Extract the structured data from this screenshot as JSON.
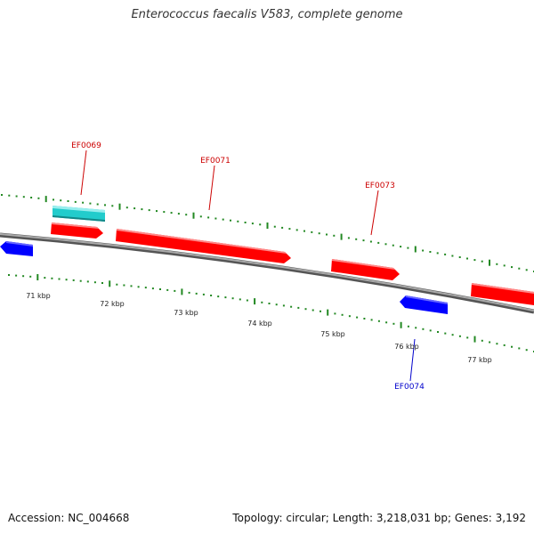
{
  "header": {
    "title": "Enterococcus faecalis V583, complete genome"
  },
  "footer": {
    "accession": "Accession: NC_004668",
    "summary": "Topology: circular; Length: 3,218,031 bp; Genes: 3,192"
  },
  "colors": {
    "forward_gene": "#ff0000",
    "reverse_gene": "#0000ff",
    "highlight_gene": "#22cccc",
    "backbone": "#888888",
    "tick": "#228822",
    "forward_label": "#cc0000",
    "reverse_label": "#0000cc"
  },
  "genes": [
    {
      "id": "EF0069",
      "strand": "forward",
      "label": "EF0069"
    },
    {
      "id": "EF0071",
      "strand": "forward",
      "label": "EF0071"
    },
    {
      "id": "EF0073",
      "strand": "forward",
      "label": "EF0073"
    },
    {
      "id": "EF0074",
      "strand": "reverse",
      "label": "EF0074"
    }
  ],
  "scale_labels": [
    "71 kbp",
    "72 kbp",
    "73 kbp",
    "74 kbp",
    "75 kbp",
    "76 kbp",
    "77 kbp"
  ]
}
